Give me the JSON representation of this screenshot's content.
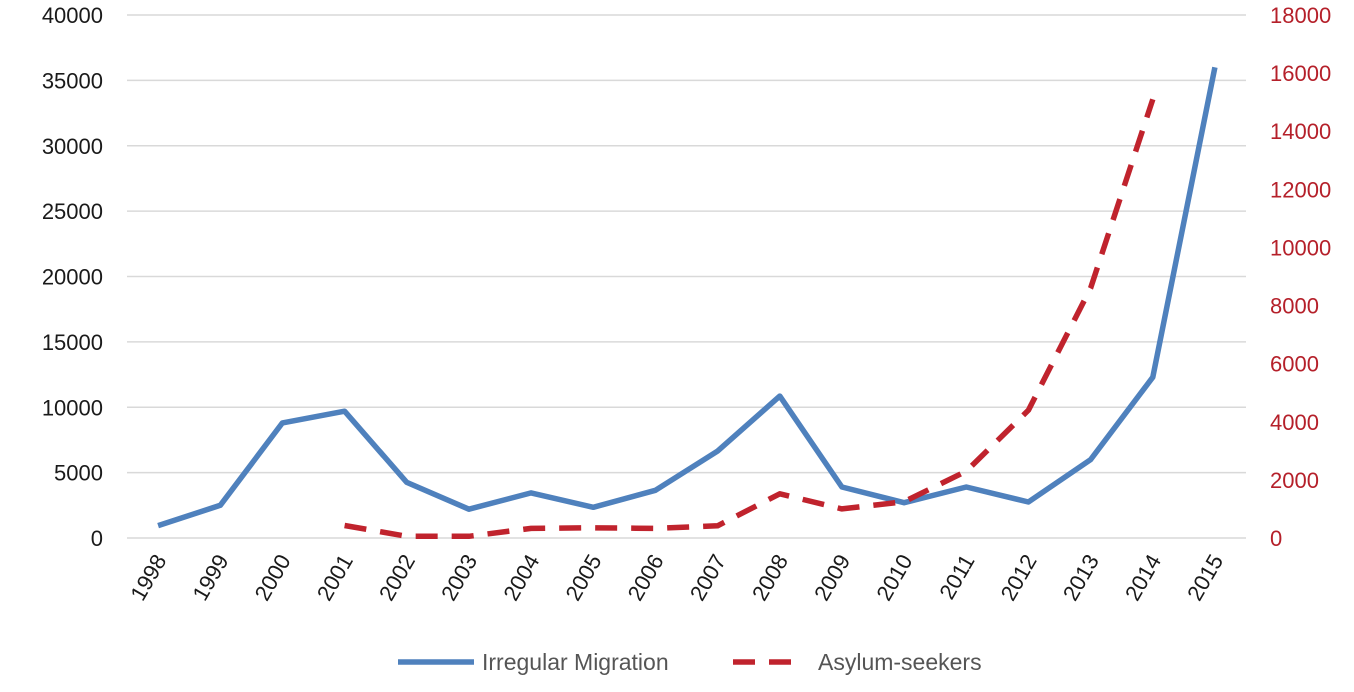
{
  "chart_data": {
    "type": "line",
    "title": "",
    "xlabel": "",
    "ylabel": "",
    "categories": [
      "1998",
      "1999",
      "2000",
      "2001",
      "2002",
      "2003",
      "2004",
      "2005",
      "2006",
      "2007",
      "2008",
      "2009",
      "2010",
      "2011",
      "2012",
      "2013",
      "2014",
      "2015"
    ],
    "y_left": {
      "min": 0,
      "max": 40000,
      "ticks": [
        0,
        5000,
        10000,
        15000,
        20000,
        25000,
        30000,
        35000,
        40000
      ]
    },
    "y_right": {
      "min": 0,
      "max": 18000,
      "ticks": [
        0,
        2000,
        4000,
        6000,
        8000,
        10000,
        12000,
        14000,
        16000,
        18000
      ]
    },
    "grid": true,
    "legend_position": "bottom",
    "series": [
      {
        "name": "Irregular Migration",
        "axis": "left",
        "style": "solid",
        "color": "#4f81bd",
        "values": [
          950,
          2500,
          8800,
          9700,
          4250,
          2200,
          3450,
          2350,
          3650,
          6650,
          10850,
          3900,
          2700,
          3900,
          2750,
          6000,
          12300,
          36000
        ]
      },
      {
        "name": "Asylum-seekers",
        "axis": "right",
        "style": "dashed",
        "color": "#c0232d",
        "values": [
          null,
          null,
          null,
          430,
          60,
          60,
          330,
          350,
          330,
          420,
          1520,
          1000,
          1250,
          2300,
          4400,
          8600,
          15100,
          null
        ]
      }
    ]
  }
}
